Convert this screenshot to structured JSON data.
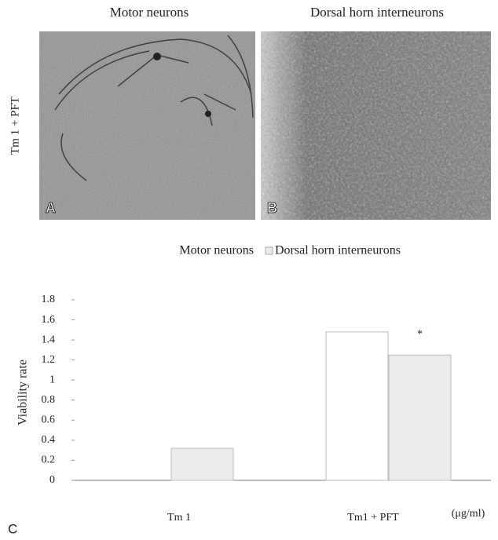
{
  "panels": [
    {
      "title": "Motor neurons",
      "letter": "A"
    },
    {
      "title": "Dorsal horn interneurons",
      "letter": "B"
    }
  ],
  "row_label": "Tm 1 + PFT",
  "chart_data": {
    "type": "bar",
    "panel_letter": "C",
    "categories": [
      "Tm 1",
      "Tm1 + PFT"
    ],
    "x_unit": "(μg/ml)",
    "ylabel": "Viability rate",
    "series": [
      {
        "name": "Motor neurons",
        "color": "#ffffff",
        "values": [
          0,
          1.48
        ]
      },
      {
        "name": "Dorsal horn interneurons",
        "color": "#ececec",
        "values": [
          0.32,
          1.25
        ]
      }
    ],
    "annotation": "*",
    "ylim": [
      0,
      1.8
    ],
    "yticks": [
      0,
      0.2,
      0.4,
      0.6,
      0.8,
      1,
      1.2,
      1.4,
      1.6,
      1.8
    ],
    "grid": false
  }
}
